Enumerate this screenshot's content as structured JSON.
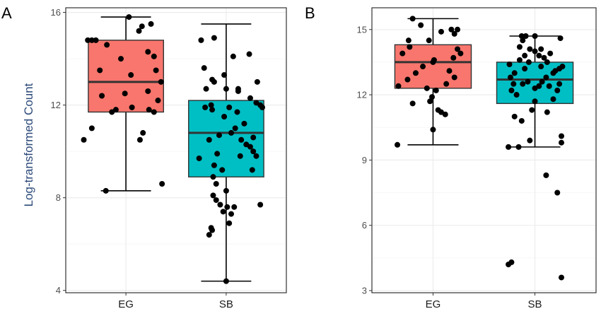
{
  "chart_data": [
    {
      "panel": "A",
      "type": "box",
      "ylabel": "Log-transformed Count",
      "xlabel": "",
      "ylim": [
        3.9,
        16.2
      ],
      "yticks": [
        4,
        8,
        12,
        16
      ],
      "grid": true,
      "categories": [
        "EG",
        "SB"
      ],
      "colors": {
        "EG": "#f8766d",
        "SB": "#00bfc4"
      },
      "boxes": [
        {
          "category": "EG",
          "min": 8.3,
          "q1": 11.7,
          "median": 13.0,
          "q3": 14.8,
          "max": 15.8
        },
        {
          "category": "SB",
          "min": 4.4,
          "q1": 8.9,
          "median": 10.8,
          "q3": 12.2,
          "max": 15.5
        }
      ],
      "points": {
        "EG": [
          [
            0.8,
            8.3
          ],
          [
            0.58,
            10.5
          ],
          [
            0.66,
            11.0
          ],
          [
            0.86,
            11.7
          ],
          [
            1.28,
            11.7
          ],
          [
            0.76,
            12.4
          ],
          [
            1.23,
            11.8
          ],
          [
            0.9,
            11.8
          ],
          [
            1.06,
            11.9
          ],
          [
            1.32,
            12.2
          ],
          [
            1.22,
            12.6
          ],
          [
            0.99,
            12.5
          ],
          [
            0.74,
            13.5
          ],
          [
            1.35,
            13.0
          ],
          [
            0.95,
            14.0
          ],
          [
            1.28,
            14.1
          ],
          [
            1.22,
            14.3
          ],
          [
            0.81,
            14.6
          ],
          [
            0.7,
            14.8
          ],
          [
            0.66,
            14.8
          ],
          [
            1.13,
            15.2
          ],
          [
            1.16,
            15.4
          ],
          [
            1.25,
            15.5
          ],
          [
            1.03,
            15.8
          ],
          [
            1.14,
            10.5
          ],
          [
            1.17,
            10.8
          ],
          [
            1.36,
            8.6
          ],
          [
            1.05,
            13.3
          ],
          [
            1.3,
            13.5
          ],
          [
            0.62,
            14.8
          ]
        ],
        "SB": [
          [
            2.0,
            4.4
          ],
          [
            1.83,
            6.4
          ],
          [
            1.86,
            6.6
          ],
          [
            1.85,
            6.7
          ],
          [
            2.03,
            6.9
          ],
          [
            2.05,
            7.3
          ],
          [
            1.97,
            7.4
          ],
          [
            2.01,
            7.6
          ],
          [
            2.08,
            7.6
          ],
          [
            1.94,
            7.7
          ],
          [
            2.34,
            7.7
          ],
          [
            1.9,
            7.9
          ],
          [
            1.87,
            8.1
          ],
          [
            2.0,
            8.3
          ],
          [
            1.9,
            8.6
          ],
          [
            1.87,
            8.9
          ],
          [
            1.96,
            9.2
          ],
          [
            1.88,
            9.4
          ],
          [
            2.26,
            9.2
          ],
          [
            1.73,
            9.7
          ],
          [
            1.91,
            9.9
          ],
          [
            2.14,
            9.8
          ],
          [
            2.3,
            9.8
          ],
          [
            2.27,
            10.0
          ],
          [
            2.24,
            10.2
          ],
          [
            1.83,
            10.5
          ],
          [
            2.05,
            10.8
          ],
          [
            2.15,
            10.5
          ],
          [
            1.93,
            10.7
          ],
          [
            2.2,
            10.3
          ],
          [
            2.27,
            10.6
          ],
          [
            2.09,
            11.0
          ],
          [
            2.18,
            11.2
          ],
          [
            1.98,
            11.5
          ],
          [
            1.86,
            11.8
          ],
          [
            2.03,
            11.9
          ],
          [
            2.36,
            11.9
          ],
          [
            2.3,
            12.1
          ],
          [
            2.11,
            11.7
          ],
          [
            2.24,
            12.3
          ],
          [
            1.85,
            12.0
          ],
          [
            2.12,
            12.6
          ],
          [
            1.8,
            12.7
          ],
          [
            2.0,
            12.7
          ],
          [
            2.12,
            12.7
          ],
          [
            1.88,
            13.0
          ],
          [
            1.98,
            13.3
          ],
          [
            1.86,
            13.1
          ],
          [
            1.78,
            13.6
          ],
          [
            2.07,
            14.1
          ],
          [
            2.23,
            14.2
          ],
          [
            1.75,
            14.8
          ],
          [
            1.88,
            14.9
          ],
          [
            2.34,
            12.0
          ],
          [
            1.79,
            11.9
          ],
          [
            2.31,
            13.0
          ]
        ]
      }
    },
    {
      "panel": "B",
      "type": "box",
      "ylabel": "",
      "xlabel": "",
      "ylim": [
        2.9,
        16.0
      ],
      "yticks": [
        3,
        6,
        9,
        12,
        15
      ],
      "grid": true,
      "categories": [
        "EG",
        "SB"
      ],
      "colors": {
        "EG": "#f8766d",
        "SB": "#00bfc4"
      },
      "boxes": [
        {
          "category": "EG",
          "min": 9.7,
          "q1": 12.3,
          "median": 13.5,
          "q3": 14.3,
          "max": 15.5
        },
        {
          "category": "SB",
          "min": 9.6,
          "q1": 11.6,
          "median": 12.7,
          "q3": 13.5,
          "max": 14.7
        }
      ],
      "points": {
        "EG": [
          [
            0.65,
            9.7
          ],
          [
            1.0,
            10.4
          ],
          [
            1.12,
            11.1
          ],
          [
            0.8,
            11.6
          ],
          [
            1.05,
            11.3
          ],
          [
            1.08,
            11.2
          ],
          [
            0.97,
            11.7
          ],
          [
            0.99,
            11.9
          ],
          [
            1.03,
            12.2
          ],
          [
            0.94,
            12.3
          ],
          [
            0.66,
            12.4
          ],
          [
            0.75,
            12.7
          ],
          [
            1.13,
            12.5
          ],
          [
            1.21,
            12.8
          ],
          [
            0.83,
            13.0
          ],
          [
            1.16,
            13.1
          ],
          [
            1.2,
            13.7
          ],
          [
            1.0,
            13.5
          ],
          [
            0.7,
            13.9
          ],
          [
            0.77,
            14.2
          ],
          [
            1.24,
            14.1
          ],
          [
            0.96,
            14.5
          ],
          [
            1.21,
            14.8
          ],
          [
            1.18,
            15.0
          ],
          [
            1.24,
            15.0
          ],
          [
            0.8,
            15.5
          ],
          [
            0.88,
            15.2
          ],
          [
            1.08,
            14.9
          ],
          [
            0.76,
            14.5
          ],
          [
            1.01,
            13.6
          ],
          [
            0.9,
            13.3
          ],
          [
            1.27,
            13.9
          ]
        ],
        "SB": [
          [
            1.74,
            4.2
          ],
          [
            1.77,
            4.3
          ],
          [
            2.26,
            3.6
          ],
          [
            2.22,
            7.5
          ],
          [
            2.11,
            8.3
          ],
          [
            1.74,
            9.6
          ],
          [
            1.84,
            9.6
          ],
          [
            2.26,
            9.8
          ],
          [
            2.26,
            10.1
          ],
          [
            1.95,
            9.9
          ],
          [
            1.87,
            10.8
          ],
          [
            1.8,
            11.0
          ],
          [
            1.97,
            11.3
          ],
          [
            2.0,
            11.7
          ],
          [
            2.12,
            11.2
          ],
          [
            2.18,
            11.8
          ],
          [
            1.77,
            12.2
          ],
          [
            1.82,
            12.0
          ],
          [
            2.0,
            12.3
          ],
          [
            2.07,
            12.6
          ],
          [
            1.88,
            12.5
          ],
          [
            2.14,
            12.4
          ],
          [
            2.22,
            12.2
          ],
          [
            2.24,
            12.5
          ],
          [
            1.76,
            12.8
          ],
          [
            1.93,
            12.6
          ],
          [
            2.04,
            12.4
          ],
          [
            2.11,
            12.8
          ],
          [
            2.18,
            13.0
          ],
          [
            1.8,
            13.0
          ],
          [
            1.9,
            13.2
          ],
          [
            2.06,
            13.3
          ],
          [
            1.75,
            13.4
          ],
          [
            2.24,
            13.2
          ],
          [
            2.2,
            13.1
          ],
          [
            2.27,
            13.3
          ],
          [
            2.12,
            13.5
          ],
          [
            1.94,
            13.5
          ],
          [
            1.9,
            13.8
          ],
          [
            2.04,
            13.8
          ],
          [
            2.0,
            14.0
          ],
          [
            1.85,
            14.2
          ],
          [
            1.88,
            14.5
          ],
          [
            2.06,
            14.1
          ],
          [
            1.95,
            14.1
          ],
          [
            1.87,
            14.7
          ],
          [
            1.91,
            14.7
          ],
          [
            2.0,
            14.7
          ],
          [
            2.25,
            14.6
          ],
          [
            1.85,
            13.6
          ],
          [
            2.15,
            13.9
          ],
          [
            2.09,
            13.7
          ],
          [
            1.79,
            12.5
          ]
        ]
      }
    }
  ]
}
